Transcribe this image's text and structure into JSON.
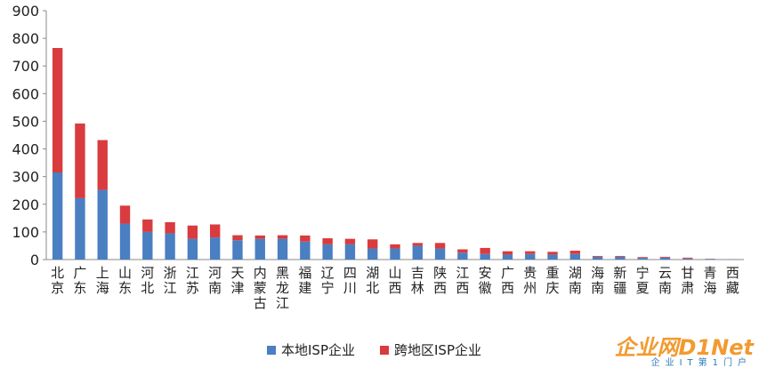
{
  "chart_data": {
    "type": "bar",
    "stacked": true,
    "categories": [
      "北京",
      "广东",
      "上海",
      "山东",
      "河北",
      "浙江",
      "江苏",
      "河南",
      "天津",
      "内蒙古",
      "黑龙江",
      "福建",
      "辽宁",
      "四川",
      "湖北",
      "山西",
      "吉林",
      "陕西",
      "江西",
      "安徽",
      "广西",
      "贵州",
      "重庆",
      "湖南",
      "海南",
      "新疆",
      "宁夏",
      "云南",
      "甘肃",
      "青海",
      "西藏"
    ],
    "series": [
      {
        "name": "本地ISP企业",
        "color": "#4a7fc1",
        "values": [
          315,
          222,
          252,
          130,
          100,
          95,
          75,
          80,
          70,
          75,
          75,
          65,
          55,
          55,
          40,
          40,
          50,
          40,
          25,
          20,
          18,
          20,
          18,
          20,
          10,
          10,
          6,
          7,
          4,
          2,
          1
        ]
      },
      {
        "name": "跨地区ISP企业",
        "color": "#d93b3e",
        "values": [
          450,
          270,
          180,
          65,
          45,
          40,
          48,
          47,
          18,
          12,
          13,
          22,
          22,
          20,
          33,
          15,
          10,
          20,
          12,
          22,
          12,
          10,
          10,
          12,
          3,
          3,
          3,
          3,
          3,
          1,
          0
        ]
      }
    ],
    "ylim": [
      0,
      900
    ],
    "yticks": [
      0,
      100,
      200,
      300,
      400,
      500,
      600,
      700,
      800,
      900
    ],
    "xlabel": "",
    "ylabel": "",
    "title": "",
    "legend_position": "bottom",
    "grid": false
  },
  "legend": {
    "items": [
      {
        "label": "本地ISP企业",
        "color": "#4a7fc1"
      },
      {
        "label": "跨地区ISP企业",
        "color": "#d93b3e"
      }
    ]
  },
  "watermark": {
    "logo_text": "企业网D1Net",
    "sub_text": "企业IT第1门户"
  }
}
